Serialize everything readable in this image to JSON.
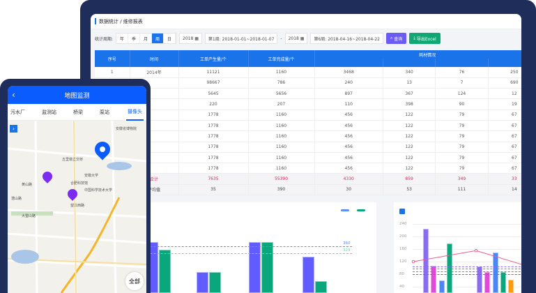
{
  "desktop": {
    "breadcrumb": "数据统计 / 维修报表",
    "toolbar": {
      "period_label": "统计周期:",
      "periods": [
        "年",
        "季",
        "月",
        "周",
        "日"
      ],
      "active_period": "周",
      "start_year": "2018",
      "start_week": "第1周: 2018-01-01~2018-01-07",
      "sep": "-",
      "end_year": "2018",
      "end_week": "第6周: 2018-04-16~2018-04-22",
      "query_label": "查询",
      "export_label": "导出Excel",
      "query_color": "#6b5cf5",
      "export_color": "#0fa874"
    },
    "table": {
      "headers": [
        "序号",
        "时间",
        "工单产生量/个",
        "工单完成量/个",
        "耗材情况"
      ],
      "rows": [
        [
          "1",
          "2014年",
          "11121",
          "1160",
          "3468",
          "340",
          "76",
          "250"
        ],
        [
          "",
          "",
          "98667",
          "786",
          "240",
          "13",
          "7",
          "690"
        ],
        [
          "",
          "",
          "5645",
          "5656",
          "897",
          "367",
          "124",
          "12"
        ],
        [
          "",
          "",
          "220",
          "207",
          "110",
          "398",
          "90",
          "19"
        ],
        [
          "",
          "",
          "1778",
          "1160",
          "456",
          "122",
          "79",
          "67"
        ],
        [
          "",
          "",
          "1778",
          "1160",
          "456",
          "122",
          "79",
          "67"
        ],
        [
          "",
          "",
          "1778",
          "1160",
          "456",
          "122",
          "79",
          "67"
        ],
        [
          "",
          "",
          "1778",
          "1160",
          "456",
          "122",
          "79",
          "67"
        ],
        [
          "",
          "",
          "1778",
          "1160",
          "456",
          "122",
          "79",
          "67"
        ],
        [
          "",
          "",
          "1778",
          "1160",
          "456",
          "122",
          "79",
          "67"
        ]
      ],
      "sum": [
        "",
        "合计",
        "7635",
        "55390",
        "4330",
        "859",
        "349",
        "33"
      ],
      "avg": [
        "",
        "平均值",
        "35",
        "390",
        "30",
        "53",
        "111",
        "14"
      ]
    }
  },
  "chart_data": [
    {
      "type": "bar",
      "ylim": [
        0,
        480
      ],
      "series_colors": [
        "#615cff",
        "#0aa67c"
      ],
      "series": [
        {
          "values": [
            null,
            382,
            223,
            382,
            304
          ]
        },
        {
          "values": [
            304,
            341,
            223,
            382,
            174
          ]
        }
      ],
      "reference_lines": [
        {
          "value": 360,
          "label": "360",
          "color": "#5b8ff9"
        },
        {
          "value": 323,
          "label": "323",
          "color": "#5ad8c6"
        }
      ]
    },
    {
      "type": "bar",
      "ylim": [
        0,
        240
      ],
      "yticks": [
        240,
        200,
        160,
        120,
        80,
        40
      ],
      "series_colors": [
        "#8a6cf0",
        "#e14ad6",
        "#4a86f7",
        "#0aa67c",
        "#ff9a0a"
      ],
      "groups": [
        [
          224,
          107,
          60,
          178,
          null
        ],
        [
          105,
          86,
          150,
          86,
          62
        ]
      ],
      "line": {
        "color": "#f05a8a",
        "values": [
          120,
          155,
          100
        ]
      },
      "reference_lines": [
        105,
        98,
        88,
        80
      ]
    }
  ],
  "phone": {
    "title": "地图监测",
    "tabs": [
      "污水厂",
      "监测站",
      "桥梁",
      "泵站",
      "摄像头"
    ],
    "active_tab": "摄像头",
    "map_labels": [
      "五里墩立交桥",
      "安徽大学",
      "合肥科技馆",
      "黄山路",
      "望江西路",
      "潜山路",
      "大蜀山路",
      "中国科学技术大学",
      "安徽省博物院"
    ],
    "all_label": "全部",
    "accent": "#0a5cff",
    "camera_pin_color": "#7b2cf0"
  }
}
